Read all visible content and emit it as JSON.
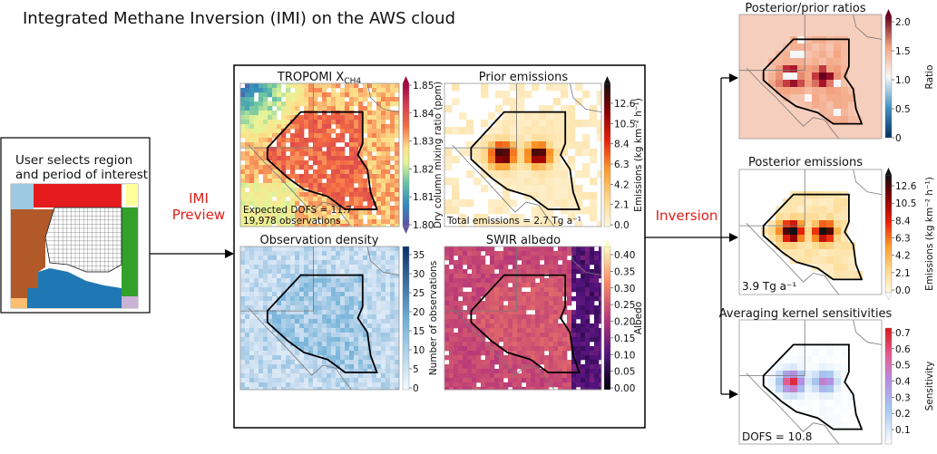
{
  "title": "Integrated Methane Inversion (IMI) on the AWS cloud",
  "user_box": {
    "line1": "User selects region",
    "line2": "and period of interest"
  },
  "preview_label": {
    "line1": "IMI",
    "line2": "Preview"
  },
  "inversion_label": "Inversion",
  "preview": {
    "tropomi": {
      "title_main": "TROPOMI X",
      "title_sub": "CH4",
      "ticks": [
        "1.85",
        "1.84",
        "1.83",
        "1.82",
        "1.81",
        "1.80"
      ],
      "cbar_label": "Dry column mixing ratio (ppm)",
      "annotation1": "Expected DOFS = 11.7",
      "annotation2": "19,978 observations"
    },
    "prior": {
      "title": "Prior emissions",
      "ticks": [
        "12.6",
        "10.5",
        "8.4",
        "6.3",
        "4.2",
        "2.1",
        "0.0"
      ],
      "cbar_label": "Emissions (kg km⁻² h⁻¹)",
      "annotation": "Total emissions = 2.7 Tg a⁻¹"
    },
    "obs_density": {
      "title": "Observation density",
      "ticks": [
        "35",
        "30",
        "25",
        "20",
        "15",
        "10",
        "5",
        "0"
      ],
      "cbar_label": "Number of observations"
    },
    "albedo": {
      "title": "SWIR albedo",
      "ticks": [
        "0.40",
        "0.35",
        "0.30",
        "0.25",
        "0.20",
        "0.15",
        "0.10",
        "0.05",
        "0.00"
      ],
      "cbar_label": "Albedo"
    }
  },
  "results": {
    "ratio": {
      "title": "Posterior/prior ratios",
      "ticks": [
        "2.0",
        "1.5",
        "1.0",
        "0.5",
        "0"
      ],
      "cbar_label": "Ratio"
    },
    "posterior": {
      "title": "Posterior emissions",
      "ticks": [
        "12.6",
        "10.5",
        "8.4",
        "6.3",
        "4.2",
        "2.1",
        "0.0"
      ],
      "cbar_label": "Emissions (kg km⁻² h⁻¹)",
      "annotation": "3.9 Tg a⁻¹"
    },
    "ak": {
      "title": "Averaging kernel sensitivities",
      "ticks": [
        "0.7",
        "0.6",
        "0.5",
        "0.4",
        "0.3",
        "0.2",
        "0.1"
      ],
      "cbar_label": "Sensitivity",
      "annotation": "DOFS = 10.8"
    }
  },
  "colors": {
    "accent_red": "#e0201b",
    "region_outline": "#000000"
  }
}
